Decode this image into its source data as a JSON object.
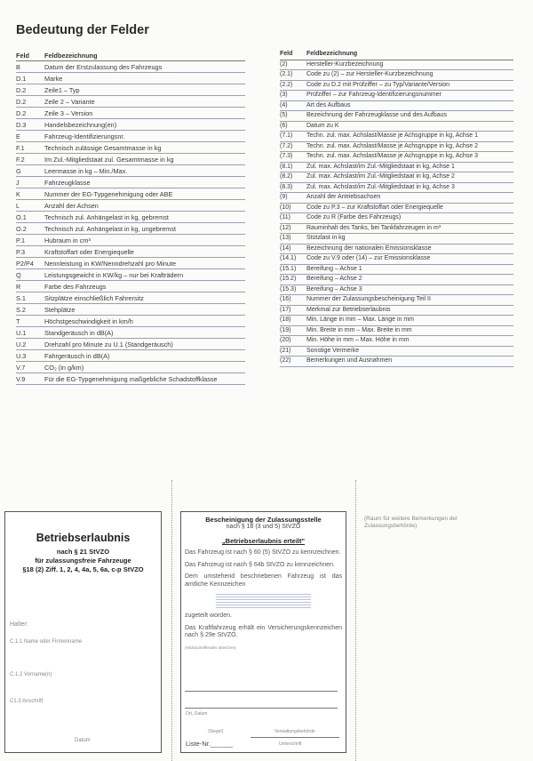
{
  "title": "Bedeutung der Felder",
  "headers": {
    "feld": "Feld",
    "bez": "Feldbezeichnung"
  },
  "left": [
    [
      "B",
      "Datum der Erstzulassung des Fahrzeugs"
    ],
    [
      "D.1",
      "Marke"
    ],
    [
      "D.2",
      "Zeile1 – Typ"
    ],
    [
      "D.2",
      "Zeile 2 – Variante"
    ],
    [
      "D.2",
      "Zeile 3 – Version"
    ],
    [
      "D.3",
      "Handelsbezeichnung(en)"
    ],
    [
      "E",
      "Fahrzeug-Identifizierungsnr."
    ],
    [
      "F.1",
      "Technisch zulässige Gesamtmasse in kg"
    ],
    [
      "F.2",
      "Im Zul.-Mitgliedstaat zul. Gesamtmasse in kg"
    ],
    [
      "G",
      "Leermasse in kg – Min./Max."
    ],
    [
      "J",
      "Fahrzeugklasse"
    ],
    [
      "K",
      "Nummer der EG-Typgenehmigung oder ABE"
    ],
    [
      "L",
      "Anzahl der Achsen"
    ],
    [
      "O.1",
      "Technisch zul. Anhängelast in kg, gebremst"
    ],
    [
      "O.2",
      "Technisch zul. Anhängelast in kg, ungebremst"
    ],
    [
      "P.1",
      "Hubraum in cm³"
    ],
    [
      "P.3",
      "Kraftstoffart oder Energiequelle"
    ],
    [
      "P2/P4",
      "Nennleistung in KW/Nenndrehzahl pro Minute"
    ],
    [
      "Q",
      "Leistungsgewicht in KW/kg – nur bei Krafträdern"
    ],
    [
      "R",
      "Farbe des Fahrzeugs"
    ],
    [
      "S.1",
      "Sitzplätze einschließlich Fahrersitz"
    ],
    [
      "S.2",
      "Stehplätze"
    ],
    [
      "T",
      "Höchstgeschwindigkeit in km/h"
    ],
    [
      "U.1",
      "Standgeräusch in dB(A)"
    ],
    [
      "U.2",
      "Drehzahl pro Minute zu U.1 (Standgeräusch)"
    ],
    [
      "U.3",
      "Fahrgeräusch in dB(A)"
    ],
    [
      "V.7",
      "CO₂ (in g/km)"
    ],
    [
      "V.9",
      "Für die EG-Typgenehmigung maßgebliche Schadstoffklasse"
    ]
  ],
  "right": [
    [
      "(2)",
      "Hersteller-Kurzbezeichnung"
    ],
    [
      "(2.1)",
      "Code zu (2) – zur Hersteller-Kurzbezeichnung"
    ],
    [
      "(2.2)",
      "Code zu D.2 mit Prüfziffer – zu Typ/Variante/Version"
    ],
    [
      "(3)",
      "Prüfziffer – zur Fahrzeug-Identifizierungsnummer"
    ],
    [
      "(4)",
      "Art des Aufbaus"
    ],
    [
      "(5)",
      "Bezeichnung der Fahrzeugklasse und des Aufbaus"
    ],
    [
      "(6)",
      "Datum zu K"
    ],
    [
      "(7.1)",
      "Techn. zul. max. Achslast/Masse je Achsgruppe in kg, Achse 1"
    ],
    [
      "(7.2)",
      "Techn. zul. max. Achslast/Masse je Achsgruppe in kg, Achse 2"
    ],
    [
      "(7.3)",
      "Techn. zul. max. Achslast/Masse je Achsgruppe in kg, Achse 3"
    ],
    [
      "(8.1)",
      "Zul. max. Achslast/im Zul.-Mitgliedstaat in kg, Achse 1"
    ],
    [
      "(8.2)",
      "Zul. max. Achslast/im Zul.-Mitgliedstaat in kg, Achse 2"
    ],
    [
      "(8.3)",
      "Zul. max. Achslast/im Zul.-Mitgliedstaat in kg, Achse 3"
    ],
    [
      "(9)",
      "Anzahl der Antriebsachsen"
    ],
    [
      "(10)",
      "Code zu P.3 – zur Kraftstoffart oder Energiequelle"
    ],
    [
      "(11)",
      "Code zu R (Farbe des Fahrzeugs)"
    ],
    [
      "(12)",
      "Rauminhalt des Tanks, bei Tankfahrzeugen in m³"
    ],
    [
      "(13)",
      "Stützlast in kg"
    ],
    [
      "(14)",
      "Bezeichnung der nationalen Emissionsklasse"
    ],
    [
      "(14.1)",
      "Code zu V.9 oder (14) – zur Emissionsklasse"
    ],
    [
      "(15.1)",
      "Bereifung – Achse 1"
    ],
    [
      "(15.2)",
      "Bereifung – Achse 2"
    ],
    [
      "(15.3)",
      "Bereifung – Achse 3"
    ],
    [
      "(16)",
      "Nummer der Zulassungsbescheinigung Teil II"
    ],
    [
      "(17)",
      "Merkmal zur Betriebserlaubnis"
    ],
    [
      "(18)",
      "Min. Länge in mm – Max. Länge in mm"
    ],
    [
      "(19)",
      "Min. Breite in mm – Max. Breite in mm"
    ],
    [
      "(20)",
      "Min. Höhe in mm – Max. Höhe in mm"
    ],
    [
      "(21)",
      "Sonstige Vermerke"
    ],
    [
      "(22)",
      "Bemerkungen und Ausnahmen"
    ]
  ],
  "box1": {
    "title": "Betriebserlaubnis",
    "sub1": "nach § 21 StVZO",
    "sub2": "für zulassungsfreie Fahrzeuge",
    "sub3": "§18 (2) Ziff. 1, 2, 4, 4a, 5, 6a, c-p StVZO",
    "halter": "Halter:",
    "c11": "C.1.1 Name oder Firmenname",
    "c12": "C.1.2 Vorname(n)",
    "c13": "C1.3 Anschrift",
    "datum": "Datum"
  },
  "box2": {
    "title": "Bescheinigung der Zulassungsstelle",
    "sub": "nach § 18 (3 und 5) StVZO",
    "quote": "„Betriebserlaubnis erteilt\"",
    "p1": "Das Fahrzeug ist nach § 60 (5) StVZO zu kennzeichnen.",
    "p2": "Das Fahrzeug ist nach § 64b StVZO zu kennzeichnen.",
    "p3": "Dem umstehend beschriebenen Fahrzeug ist das amtliche Kennzeichen",
    "p4": "zugeteilt worden.",
    "p5": "Das Kraftfahrzeug erhält ein Versicherungskennzeichen nach § 29e StVZO.",
    "strike": "(Nichtzutreffendes streichen)",
    "ort": "Ort, Datum",
    "siegel": "(Siegel)",
    "behoerde": "Verwaltungsbehörde",
    "liste": "Liste-Nr.______",
    "unterschrift": "Unterschrift"
  },
  "note": "(Raum für weitere Bemerkungen der Zulassungsbehörde)"
}
